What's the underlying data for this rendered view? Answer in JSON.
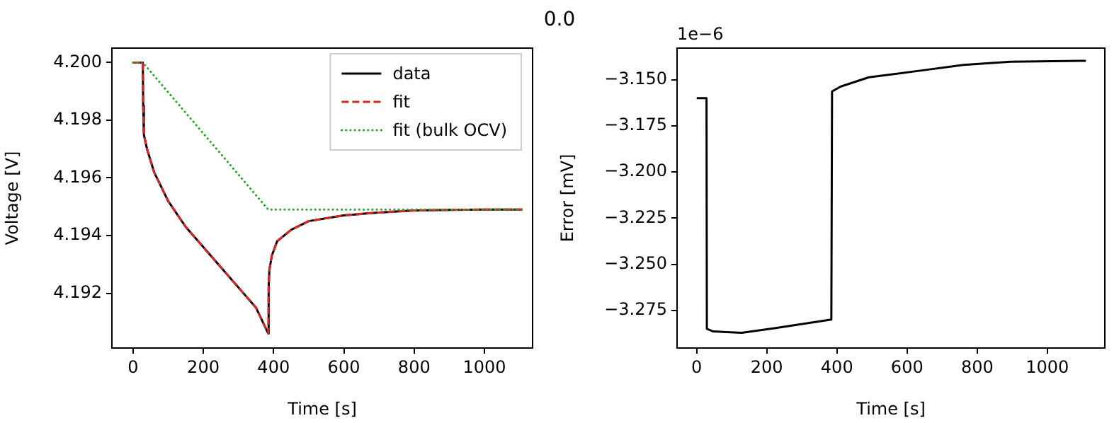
{
  "chart_data": [
    {
      "type": "line",
      "xlabel": "Time [s]",
      "ylabel": "Voltage [V]",
      "legend": "top right",
      "grid": false,
      "marker": "none",
      "xlim": [
        -60,
        1137
      ],
      "ylim": [
        4.1901,
        4.2005
      ],
      "xticks": [
        0,
        200,
        400,
        600,
        800,
        1000
      ],
      "yticks": [
        {
          "value": 4.192,
          "label": "4.192"
        },
        {
          "value": 4.194,
          "label": "4.194"
        },
        {
          "value": 4.196,
          "label": "4.196"
        },
        {
          "value": 4.198,
          "label": "4.198"
        },
        {
          "value": 4.2,
          "label": "4.200"
        }
      ],
      "series": [
        {
          "name": "data",
          "color": "#000000",
          "line_style": "solid",
          "x": [
            0,
            28,
            29,
            31,
            40,
            60,
            100,
            150,
            200,
            250,
            300,
            350,
            385,
            386,
            388,
            395,
            410,
            450,
            500,
            600,
            700,
            800,
            900,
            1000,
            1108
          ],
          "values": [
            4.2,
            4.2,
            4.1985,
            4.1975,
            4.197,
            4.1962,
            4.1952,
            4.1943,
            4.1936,
            4.1929,
            4.1922,
            4.1915,
            4.1906,
            4.1922,
            4.1928,
            4.1933,
            4.1938,
            4.1942,
            4.1945,
            4.1947,
            4.1948,
            4.19487,
            4.19489,
            4.1949,
            4.1949
          ]
        },
        {
          "name": "fit",
          "color": "#d62728",
          "line_style": "dashed",
          "x": [
            0,
            28,
            29,
            31,
            40,
            60,
            100,
            150,
            200,
            250,
            300,
            350,
            385,
            386,
            388,
            395,
            410,
            450,
            500,
            600,
            700,
            800,
            900,
            1000,
            1108
          ],
          "values": [
            4.2,
            4.2,
            4.1985,
            4.1975,
            4.197,
            4.1962,
            4.1952,
            4.1943,
            4.1936,
            4.1929,
            4.1922,
            4.1915,
            4.1906,
            4.1922,
            4.1928,
            4.1933,
            4.1938,
            4.1942,
            4.1945,
            4.1947,
            4.1948,
            4.19487,
            4.19489,
            4.1949,
            4.1949
          ]
        },
        {
          "name": "fit (bulk OCV)",
          "color": "#2ca02c",
          "line_style": "dotted",
          "x": [
            0,
            28,
            385,
            1108
          ],
          "values": [
            4.2,
            4.2,
            4.1949,
            4.1949
          ]
        }
      ]
    },
    {
      "type": "line",
      "title": "0.0",
      "xlabel": "Time [s]",
      "ylabel": "Error [mV]",
      "legend": false,
      "grid": false,
      "marker": "none",
      "annotations": [
        "1e−6"
      ],
      "xlim": [
        -56,
        1164
      ],
      "ylim": [
        -3.2954,
        -3.1329
      ],
      "xticks": [
        0,
        200,
        400,
        600,
        800,
        1000
      ],
      "yticks": [
        {
          "value": -3.275,
          "label": "−3.275"
        },
        {
          "value": -3.25,
          "label": "−3.250"
        },
        {
          "value": -3.225,
          "label": "−3.225"
        },
        {
          "value": -3.2,
          "label": "−3.200"
        },
        {
          "value": -3.175,
          "label": "−3.175"
        },
        {
          "value": -3.15,
          "label": "−3.150"
        }
      ],
      "series": [
        {
          "color": "#000000",
          "line_style": "solid",
          "x": [
            0,
            28,
            29,
            47,
            128,
            222,
            384,
            386,
            410,
            491,
            626,
            761,
            895,
            1110
          ],
          "values": [
            -3.16,
            -3.16,
            -3.285,
            -3.2864,
            -3.2872,
            -3.2847,
            -3.28,
            -3.1564,
            -3.1538,
            -3.1487,
            -3.1454,
            -3.142,
            -3.1403,
            -3.1398
          ]
        }
      ]
    }
  ]
}
